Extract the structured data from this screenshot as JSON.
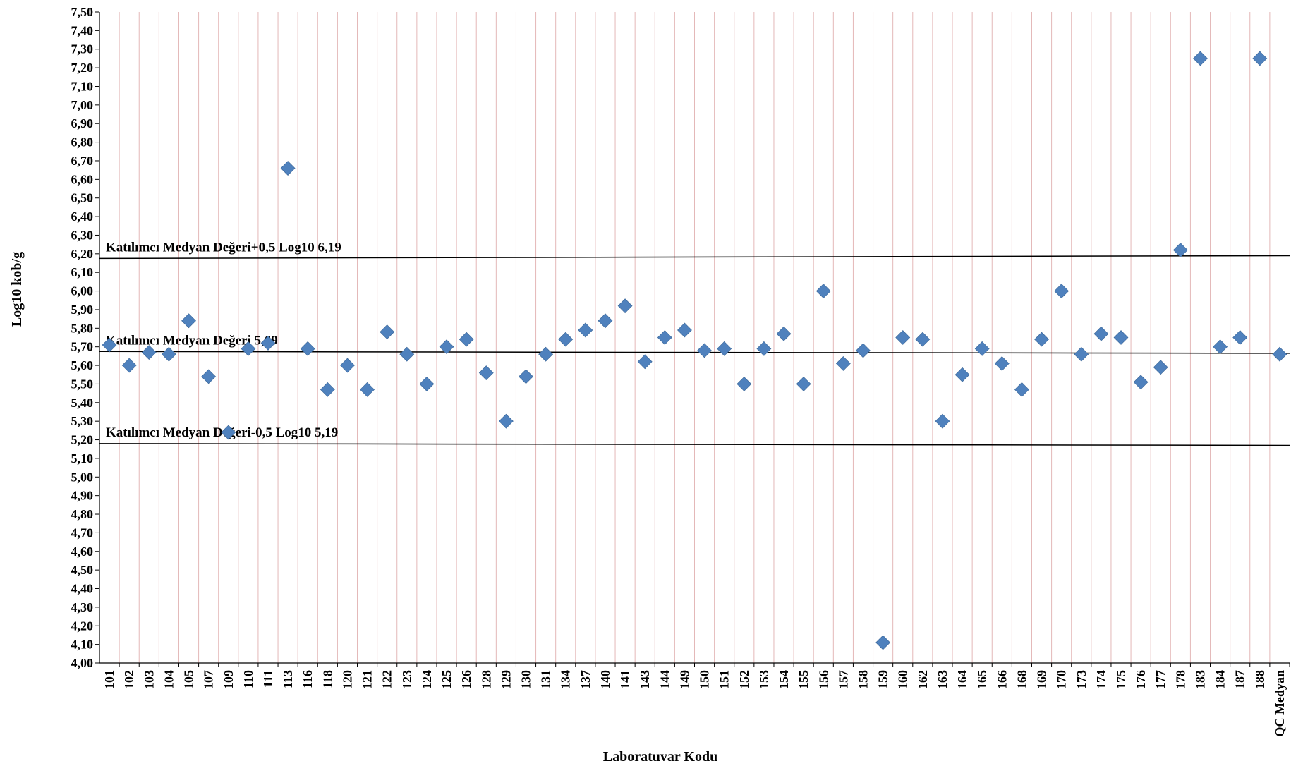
{
  "chart_data": {
    "type": "scatter",
    "xlabel": "Laboratuvar Kodu",
    "ylabel": "Log10 kob/g",
    "ylim": [
      4.0,
      7.5
    ],
    "ytick_step": 0.1,
    "yticks": [
      "4,00",
      "4,10",
      "4,20",
      "4,30",
      "4,40",
      "4,50",
      "4,60",
      "4,70",
      "4,80",
      "4,90",
      "5,00",
      "5,10",
      "5,20",
      "5,30",
      "5,40",
      "5,50",
      "5,60",
      "5,70",
      "5,80",
      "5,90",
      "6,00",
      "6,10",
      "6,20",
      "6,30",
      "6,40",
      "6,50",
      "6,60",
      "6,70",
      "6,80",
      "6,90",
      "7,00",
      "7,10",
      "7,20",
      "7,30",
      "7,40",
      "7,50"
    ],
    "categories": [
      "101",
      "102",
      "103",
      "104",
      "105",
      "107",
      "109",
      "110",
      "111",
      "113",
      "116",
      "118",
      "120",
      "121",
      "122",
      "123",
      "124",
      "125",
      "126",
      "128",
      "129",
      "130",
      "131",
      "134",
      "137",
      "140",
      "141",
      "143",
      "144",
      "149",
      "150",
      "151",
      "152",
      "153",
      "154",
      "155",
      "156",
      "157",
      "158",
      "159",
      "160",
      "162",
      "163",
      "164",
      "165",
      "166",
      "168",
      "169",
      "170",
      "173",
      "174",
      "175",
      "176",
      "177",
      "178",
      "183",
      "184",
      "187",
      "188",
      "QC Medyan"
    ],
    "values": [
      5.71,
      5.6,
      5.67,
      5.66,
      5.84,
      5.54,
      5.24,
      5.69,
      5.72,
      6.66,
      5.69,
      5.47,
      5.6,
      5.47,
      5.78,
      5.66,
      5.5,
      5.7,
      5.74,
      5.56,
      5.3,
      5.54,
      5.66,
      5.74,
      5.79,
      5.84,
      5.92,
      5.62,
      5.75,
      5.79,
      5.68,
      5.69,
      5.5,
      5.69,
      5.77,
      5.5,
      6.0,
      5.61,
      5.68,
      4.11,
      5.75,
      5.74,
      5.3,
      5.55,
      5.69,
      5.61,
      5.47,
      5.74,
      6.0,
      5.66,
      5.77,
      5.75,
      5.51,
      5.59,
      6.22,
      7.25,
      5.7,
      5.75,
      7.25,
      5.66
    ],
    "marker_color": "#4f81bd",
    "grid": "vertical",
    "grid_color": "#e4b8b8",
    "reference_lines": [
      {
        "label": "Katılımcı Medyan Değeri+0,5 Log10 6,19",
        "y_start": 6.175,
        "y_end": 6.19
      },
      {
        "label": "Katılımcı Medyan Değeri 5,69",
        "y_start": 5.675,
        "y_end": 5.665
      },
      {
        "label": "Katılımcı Medyan Değeri-0,5 Log10  5,19",
        "y_start": 5.18,
        "y_end": 5.17
      }
    ]
  }
}
